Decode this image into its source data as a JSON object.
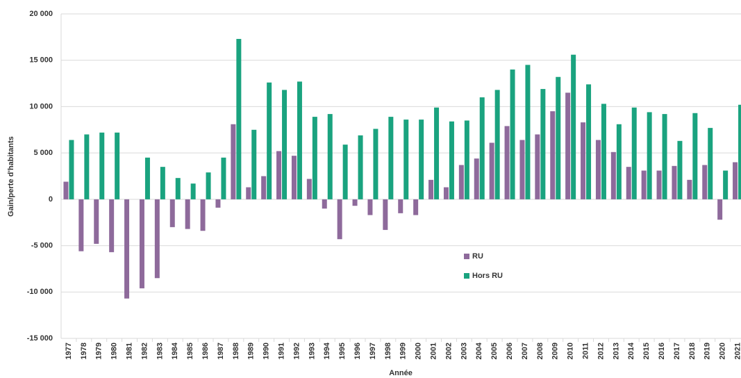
{
  "chart_data": {
    "type": "bar",
    "x_label": "Année",
    "y_label": "Gain/perte d'habitants",
    "categories": [
      "1977",
      "1978",
      "1979",
      "1980",
      "1981",
      "1982",
      "1983",
      "1984",
      "1985",
      "1986",
      "1987",
      "1988",
      "1989",
      "1990",
      "1991",
      "1992",
      "1993",
      "1994",
      "1995",
      "1996",
      "1997",
      "1998",
      "1999",
      "2000",
      "2001",
      "2002",
      "2003",
      "2004",
      "2005",
      "2006",
      "2007",
      "2008",
      "2009",
      "2010",
      "2011",
      "2012",
      "2013",
      "2014",
      "2015",
      "2016",
      "2017",
      "2018",
      "2019",
      "2020",
      "2021"
    ],
    "series": [
      {
        "name": "RU",
        "color": "#8e6a9b",
        "values": [
          1900,
          -5600,
          -4800,
          -5700,
          -10700,
          -9600,
          -8500,
          -3000,
          -3200,
          -3400,
          -900,
          8100,
          1300,
          2500,
          5200,
          4700,
          2200,
          -1000,
          -4300,
          -700,
          -1700,
          -3300,
          -1500,
          -1700,
          2100,
          1300,
          3700,
          4400,
          6100,
          7900,
          6400,
          7000,
          9500,
          11500,
          8300,
          6400,
          5100,
          3500,
          3100,
          3100,
          3600,
          2100,
          3700,
          -2200,
          4000
        ]
      },
      {
        "name": "Hors RU",
        "color": "#1aa37f",
        "values": [
          6400,
          7000,
          7200,
          7200,
          0,
          4500,
          3500,
          2300,
          1700,
          2900,
          4500,
          17300,
          7500,
          12600,
          11800,
          12700,
          8900,
          9200,
          5900,
          6900,
          7600,
          8900,
          8600,
          8600,
          9900,
          8400,
          8500,
          11000,
          11800,
          14000,
          14500,
          11900,
          13200,
          15600,
          12400,
          10300,
          8100,
          9900,
          9400,
          9200,
          6300,
          9300,
          7700,
          3100,
          10200
        ]
      }
    ],
    "ylim": [
      -15000,
      20000
    ],
    "yticks": [
      {
        "value": -15000,
        "label": "-15 000"
      },
      {
        "value": -10000,
        "label": "-10 000"
      },
      {
        "value": -5000,
        "label": "-5 000"
      },
      0,
      {
        "value": 5000,
        "label": "5 000"
      },
      {
        "value": 10000,
        "label": "10 000"
      },
      {
        "value": 15000,
        "label": "15 000"
      },
      {
        "value": 20000,
        "label": "20 000"
      }
    ],
    "grid": true
  }
}
